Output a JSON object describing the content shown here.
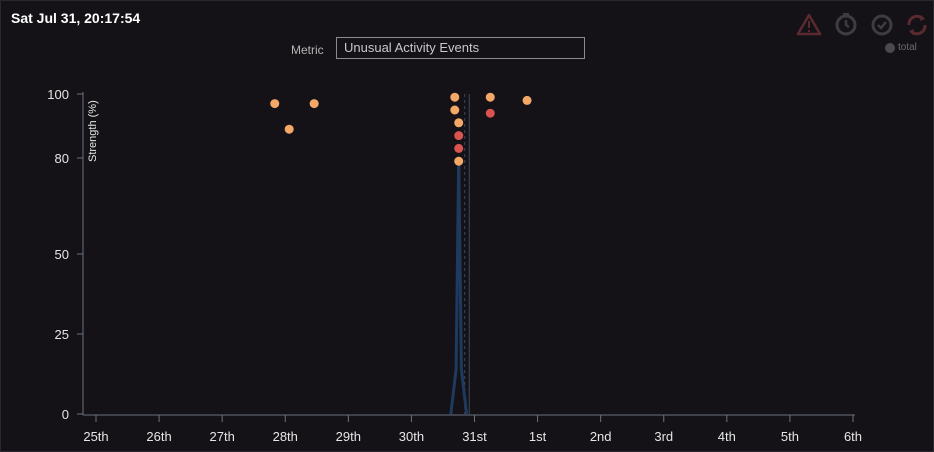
{
  "header": {
    "timestamp": "Sat Jul 31, 20:17:54"
  },
  "metric": {
    "label": "Metric",
    "selected": "Unusual Activity Events"
  },
  "toolbar": {
    "icons": [
      "warning-icon",
      "timer-icon",
      "check-circle-icon",
      "refresh-icon"
    ]
  },
  "legend": {
    "label": "total"
  },
  "colors": {
    "background": "#141216",
    "point_orange": "#f4a868",
    "point_red": "#d9534f",
    "line": "#1f3a5f",
    "axis": "#6b7280"
  },
  "chart_data": {
    "type": "scatter",
    "title": "",
    "xlabel": "",
    "ylabel": "Strength (%)",
    "x_tick_labels": [
      "25th",
      "26th",
      "27th",
      "28th",
      "29th",
      "30th",
      "31st",
      "1st",
      "2nd",
      "3rd",
      "4th",
      "5th",
      "6th"
    ],
    "x_tick_dates": [
      "Jul 25",
      "Jul 26",
      "Jul 27",
      "Jul 28",
      "Jul 29",
      "Jul 30",
      "Jul 31",
      "Aug 1",
      "Aug 2",
      "Aug 3",
      "Aug 4",
      "Aug 5",
      "Aug 6"
    ],
    "y_ticks": [
      0,
      25,
      50,
      80,
      100
    ],
    "ylim": [
      0,
      100
    ],
    "xlim": [
      "Jul 25",
      "Aug 6"
    ],
    "grid": false,
    "points": [
      {
        "x": "Jul 27 20:00",
        "y": 97,
        "color": "orange"
      },
      {
        "x": "Jul 28 01:30",
        "y": 89,
        "color": "orange"
      },
      {
        "x": "Jul 28 11:00",
        "y": 97,
        "color": "orange"
      },
      {
        "x": "Jul 30 16:30",
        "y": 99,
        "color": "orange"
      },
      {
        "x": "Jul 30 16:30",
        "y": 95,
        "color": "orange"
      },
      {
        "x": "Jul 30 18:00",
        "y": 91,
        "color": "orange"
      },
      {
        "x": "Jul 30 18:00",
        "y": 87,
        "color": "red"
      },
      {
        "x": "Jul 30 18:00",
        "y": 83,
        "color": "red"
      },
      {
        "x": "Jul 30 18:00",
        "y": 79,
        "color": "orange"
      },
      {
        "x": "Jul 31 06:00",
        "y": 99,
        "color": "orange"
      },
      {
        "x": "Jul 31 06:00",
        "y": 94,
        "color": "red"
      },
      {
        "x": "Jul 31 20:00",
        "y": 98,
        "color": "orange"
      }
    ],
    "series": [
      {
        "x": [
          "Jul 30 15:00",
          "Jul 30 17:00",
          "Jul 30 18:00",
          "Jul 30 19:00",
          "Jul 30 21:00"
        ],
        "values": [
          0,
          14,
          80,
          14,
          0
        ]
      }
    ],
    "markers": [
      {
        "x": "Jul 30 20:17",
        "style": "dashed"
      },
      {
        "x": "Jul 30 22:00",
        "style": "solid"
      }
    ]
  }
}
